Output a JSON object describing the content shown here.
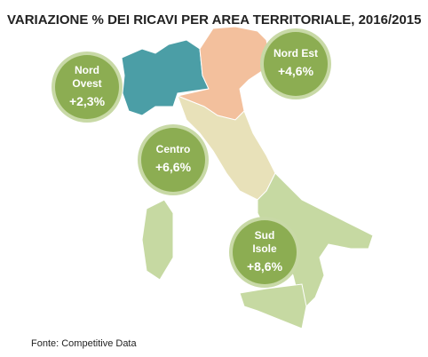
{
  "title": "VARIAZIONE % DEI RICAVI PER AREA TERRITORIALE, 2016/2015",
  "areas": [
    {
      "label_lines": [
        "Nord",
        "Ovest"
      ],
      "value": "+2,3%"
    },
    {
      "label_lines": [
        "Nord Est"
      ],
      "value": "+4,6%"
    },
    {
      "label_lines": [
        "Centro"
      ],
      "value": "+6,6%"
    },
    {
      "label_lines": [
        "Sud",
        "Isole"
      ],
      "value": "+8,6%"
    }
  ],
  "source": "Fonte: Competitive Data"
}
